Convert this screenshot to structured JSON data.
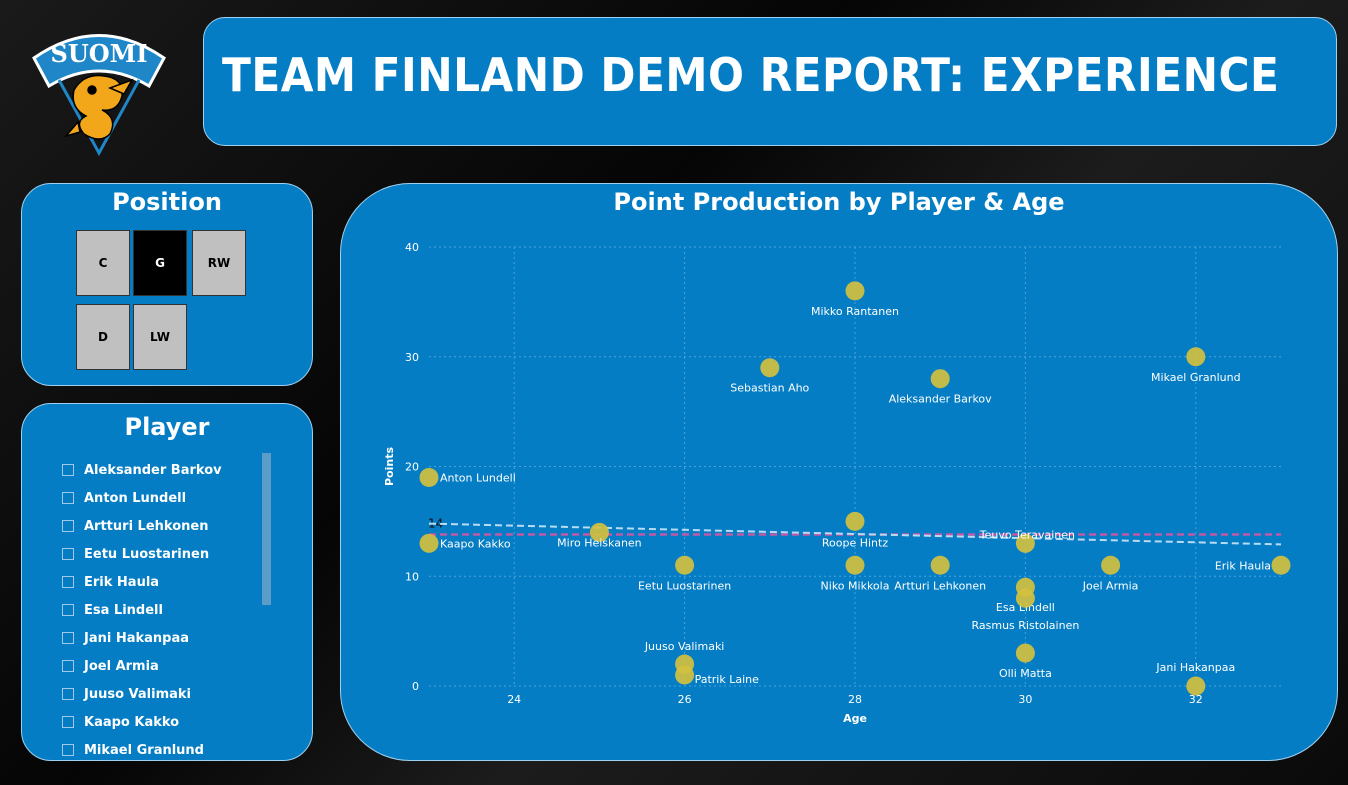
{
  "logo": {
    "text": "SUOMI",
    "gold": "#f2a71b",
    "blue": "#1f86c8"
  },
  "header": {
    "title": "TEAM FINLAND DEMO REPORT: EXPERIENCE"
  },
  "position_slicer": {
    "title": "Position",
    "buttons": [
      {
        "label": "C",
        "selected": false
      },
      {
        "label": "G",
        "selected": true
      },
      {
        "label": "RW",
        "selected": false
      },
      {
        "label": "D",
        "selected": false
      },
      {
        "label": "LW",
        "selected": false
      }
    ]
  },
  "player_slicer": {
    "title": "Player",
    "items": [
      "Aleksander Barkov",
      "Anton Lundell",
      "Artturi Lehkonen",
      "Eetu Luostarinen",
      "Erik Haula",
      "Esa Lindell",
      "Jani Hakanpaa",
      "Joel Armia",
      "Juuso Valimaki",
      "Kaapo Kakko",
      "Mikael Granlund"
    ]
  },
  "colors": {
    "panel": "#047dc4",
    "point": "#d4c03e",
    "trend": "#b9dcf2",
    "average": "#c05aa6"
  },
  "chart_data": {
    "type": "scatter",
    "title": "Point Production by Player & Age",
    "xlabel": "Age",
    "ylabel": "Points",
    "xlim": [
      23,
      33
    ],
    "ylim": [
      0,
      40
    ],
    "xticks": [
      24,
      26,
      28,
      30,
      32
    ],
    "yticks": [
      0,
      10,
      20,
      30,
      40
    ],
    "gridlines": true,
    "average_line": {
      "value": 13.8,
      "label": "14"
    },
    "trend_line": {
      "from": [
        23,
        14.8
      ],
      "to": [
        33,
        12.9
      ]
    },
    "points": [
      {
        "name": "Mikko Rantanen",
        "age": 28,
        "points": 36
      },
      {
        "name": "Sebastian Aho",
        "age": 27,
        "points": 29
      },
      {
        "name": "Aleksander Barkov",
        "age": 29,
        "points": 28
      },
      {
        "name": "Mikael Granlund",
        "age": 32,
        "points": 30
      },
      {
        "name": "Anton Lundell",
        "age": 23,
        "points": 19
      },
      {
        "name": "Kaapo Kakko",
        "age": 23,
        "points": 13
      },
      {
        "name": "Miro Heiskanen",
        "age": 25,
        "points": 14
      },
      {
        "name": "Roope Hintz",
        "age": 28,
        "points": 15
      },
      {
        "name": "Eetu Luostarinen",
        "age": 26,
        "points": 11
      },
      {
        "name": "Niko Mikkola",
        "age": 28,
        "points": 11
      },
      {
        "name": "Artturi Lehkonen",
        "age": 29,
        "points": 11
      },
      {
        "name": "Teuvo Teravainen",
        "age": 30,
        "points": 13
      },
      {
        "name": "Joel Armia",
        "age": 31,
        "points": 11
      },
      {
        "name": "Erik Haula",
        "age": 33,
        "points": 11
      },
      {
        "name": "Esa Lindell",
        "age": 30,
        "points": 9
      },
      {
        "name": "Rasmus Ristolainen",
        "age": 30,
        "points": 8
      },
      {
        "name": "Juuso Valimaki",
        "age": 26,
        "points": 2
      },
      {
        "name": "Patrik Laine",
        "age": 26,
        "points": 1
      },
      {
        "name": "Olli Matta",
        "age": 30,
        "points": 3
      },
      {
        "name": "Jani Hakanpaa",
        "age": 32,
        "points": 0
      }
    ]
  }
}
